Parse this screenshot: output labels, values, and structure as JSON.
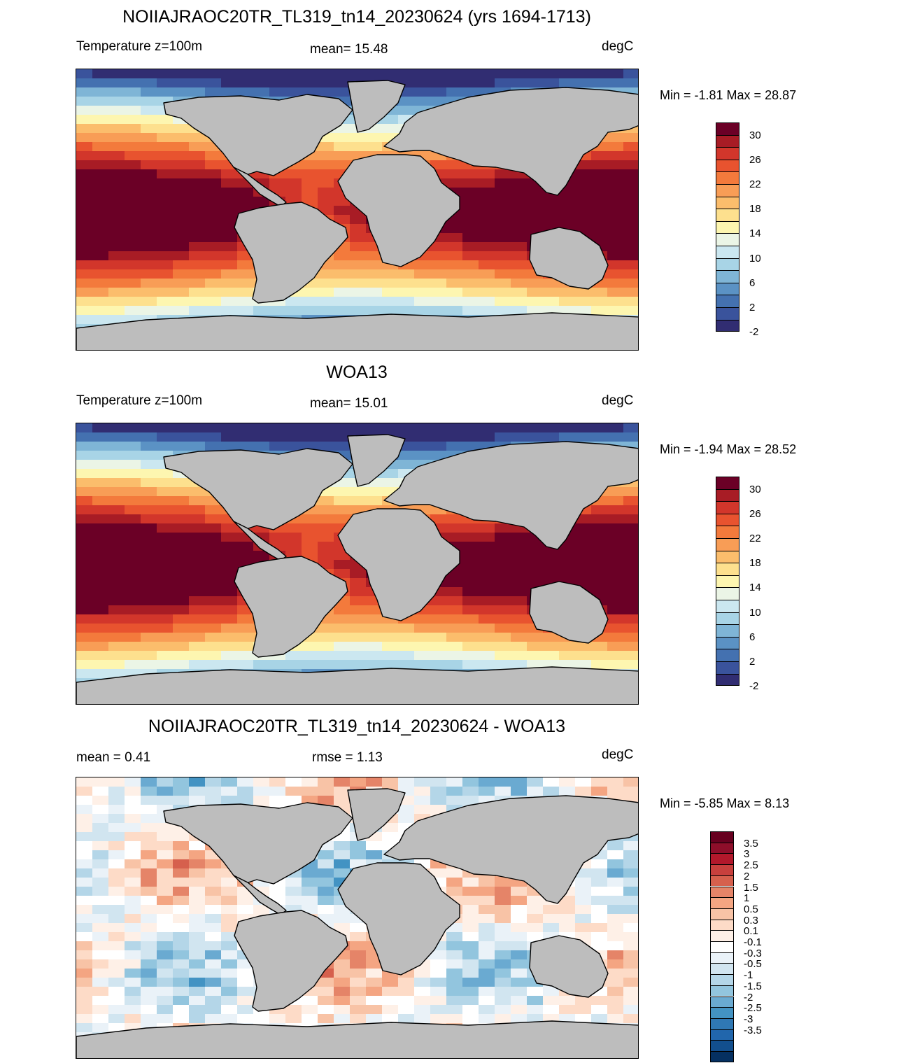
{
  "panels": [
    {
      "id": "model",
      "title": "NOIIAJRAOC20TR_TL319_tn14_20230624 (yrs 1694-1713)",
      "left_label": "Temperature z=100m",
      "center_label": "mean=  15.48",
      "right_label": "degC",
      "minmax": "Min =  -1.81 Max =  28.87",
      "map_kind": "temperature",
      "colorbar": {
        "colors": [
          "#6b0026",
          "#a81c25",
          "#d2362b",
          "#e8532f",
          "#f37a3c",
          "#f89d56",
          "#fbbd6c",
          "#fde08e",
          "#fdf6b0",
          "#ebf5e6",
          "#cbe7f0",
          "#a8d4e6",
          "#7fb5d6",
          "#5b92c4",
          "#4471b0",
          "#3a539c",
          "#312d72"
        ],
        "labels": [
          "30",
          "26",
          "22",
          "18",
          "14",
          "10",
          "6",
          "2",
          "-2"
        ]
      }
    },
    {
      "id": "obs",
      "title": "WOA13",
      "left_label": "Temperature z=100m",
      "center_label": "mean=  15.01",
      "right_label": "degC",
      "minmax": "Min =  -1.94 Max =  28.52",
      "map_kind": "temperature",
      "colorbar": {
        "colors": [
          "#6b0026",
          "#a81c25",
          "#d2362b",
          "#e8532f",
          "#f37a3c",
          "#f89d56",
          "#fbbd6c",
          "#fde08e",
          "#fdf6b0",
          "#ebf5e6",
          "#cbe7f0",
          "#a8d4e6",
          "#7fb5d6",
          "#5b92c4",
          "#4471b0",
          "#3a539c",
          "#312d72"
        ],
        "labels": [
          "30",
          "26",
          "22",
          "18",
          "14",
          "10",
          "6",
          "2",
          "-2"
        ]
      }
    },
    {
      "id": "diff",
      "title": "NOIIAJRAOC20TR_TL319_tn14_20230624 - WOA13",
      "left_label": "mean =   0.41",
      "center_label": "rmse =   1.13",
      "right_label": "degC",
      "minmax": "Min =  -5.85 Max =   8.13",
      "map_kind": "difference",
      "colorbar": {
        "colors": [
          "#67001f",
          "#8e0e2a",
          "#b2182b",
          "#c8403d",
          "#d6604d",
          "#e58468",
          "#f4a582",
          "#f8c3a6",
          "#fddbc7",
          "#fef0e7",
          "#ffffff",
          "#eaf2f8",
          "#d1e5f0",
          "#b4d6e8",
          "#92c5de",
          "#6aaad1",
          "#4393c3",
          "#2f78b4",
          "#2166ac",
          "#124f8e",
          "#053061"
        ],
        "labels": [
          "3.5",
          "3",
          "2.5",
          "2",
          "1.5",
          "1",
          "0.5",
          "0.3",
          "0.1",
          "-0.1",
          "-0.3",
          "-0.5",
          "-1",
          "-1.5",
          "-2",
          "-2.5",
          "-3",
          "-3.5"
        ]
      }
    }
  ]
}
